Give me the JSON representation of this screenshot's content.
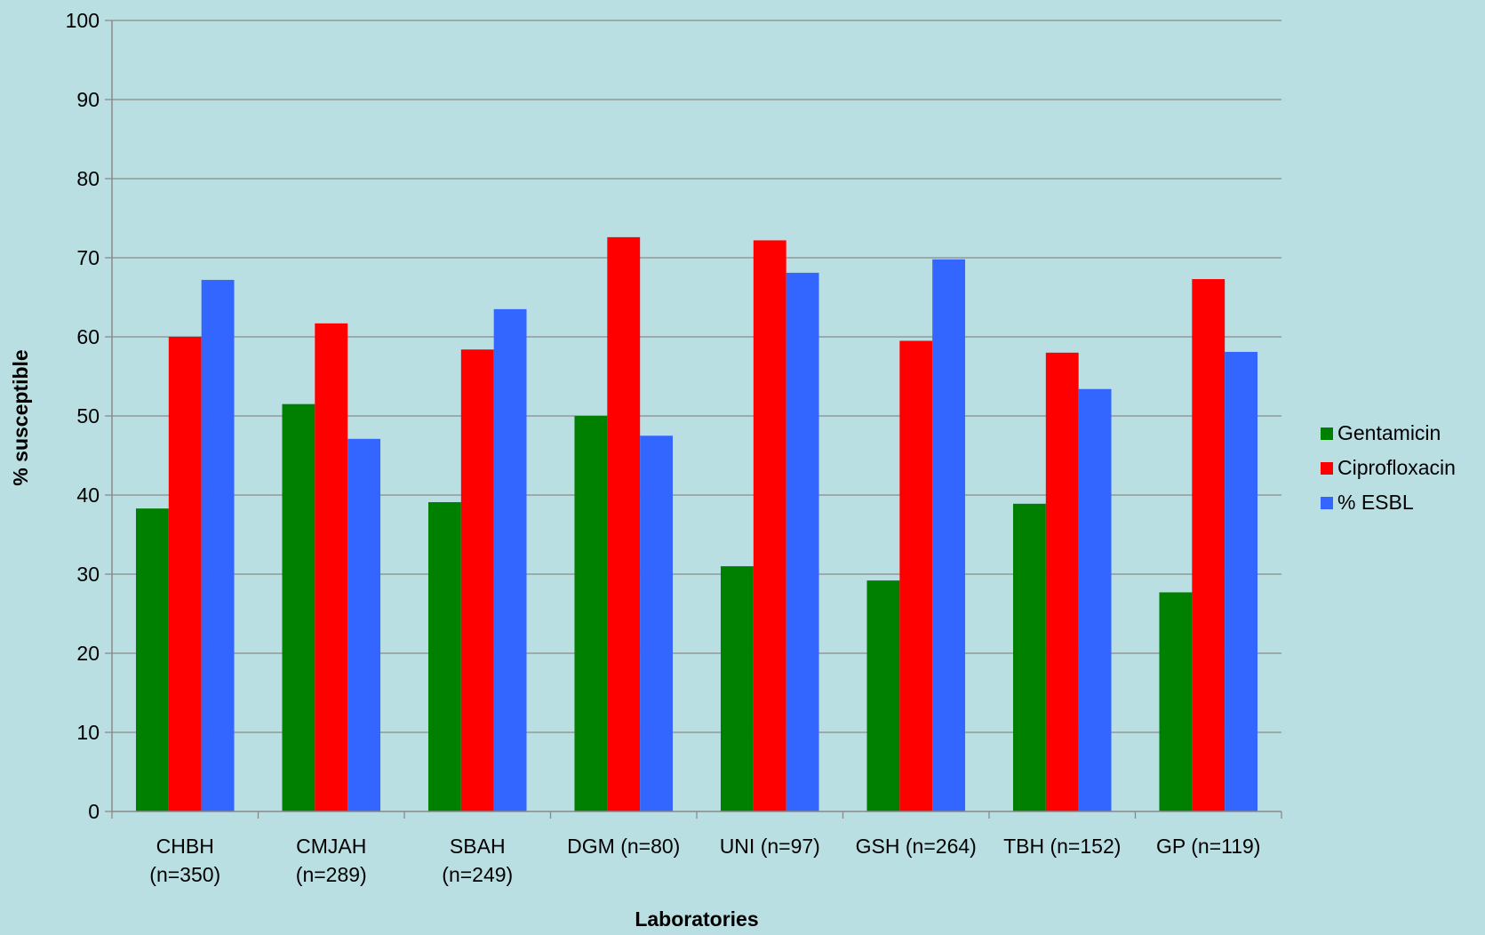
{
  "chart_data": {
    "type": "bar",
    "title": "",
    "xlabel": "Laboratories",
    "ylabel": "% susceptible",
    "ylim": [
      0,
      100
    ],
    "yticks": [
      0,
      10,
      20,
      30,
      40,
      50,
      60,
      70,
      80,
      90,
      100
    ],
    "grid": true,
    "legend_position": "right",
    "categories": [
      [
        "CHBH",
        "(n=350)"
      ],
      [
        "CMJAH",
        "(n=289)"
      ],
      [
        "SBAH",
        "(n=249)"
      ],
      [
        "DGM (n=80)"
      ],
      [
        "UNI (n=97)"
      ],
      [
        "GSH (n=264)"
      ],
      [
        "TBH (n=152)"
      ],
      [
        "GP (n=119)"
      ]
    ],
    "series": [
      {
        "name": "Gentamicin",
        "color": "#008000",
        "values": [
          38.3,
          51.5,
          39.1,
          50.0,
          31.0,
          29.2,
          38.9,
          27.7
        ]
      },
      {
        "name": "Ciprofloxacin",
        "color": "#ff0000",
        "values": [
          60.0,
          61.7,
          58.4,
          72.6,
          72.2,
          59.5,
          58.0,
          67.3
        ]
      },
      {
        "name": "% ESBL",
        "color": "#3366ff",
        "values": [
          67.2,
          47.1,
          63.5,
          47.5,
          68.1,
          69.8,
          53.4,
          58.1
        ]
      }
    ]
  }
}
